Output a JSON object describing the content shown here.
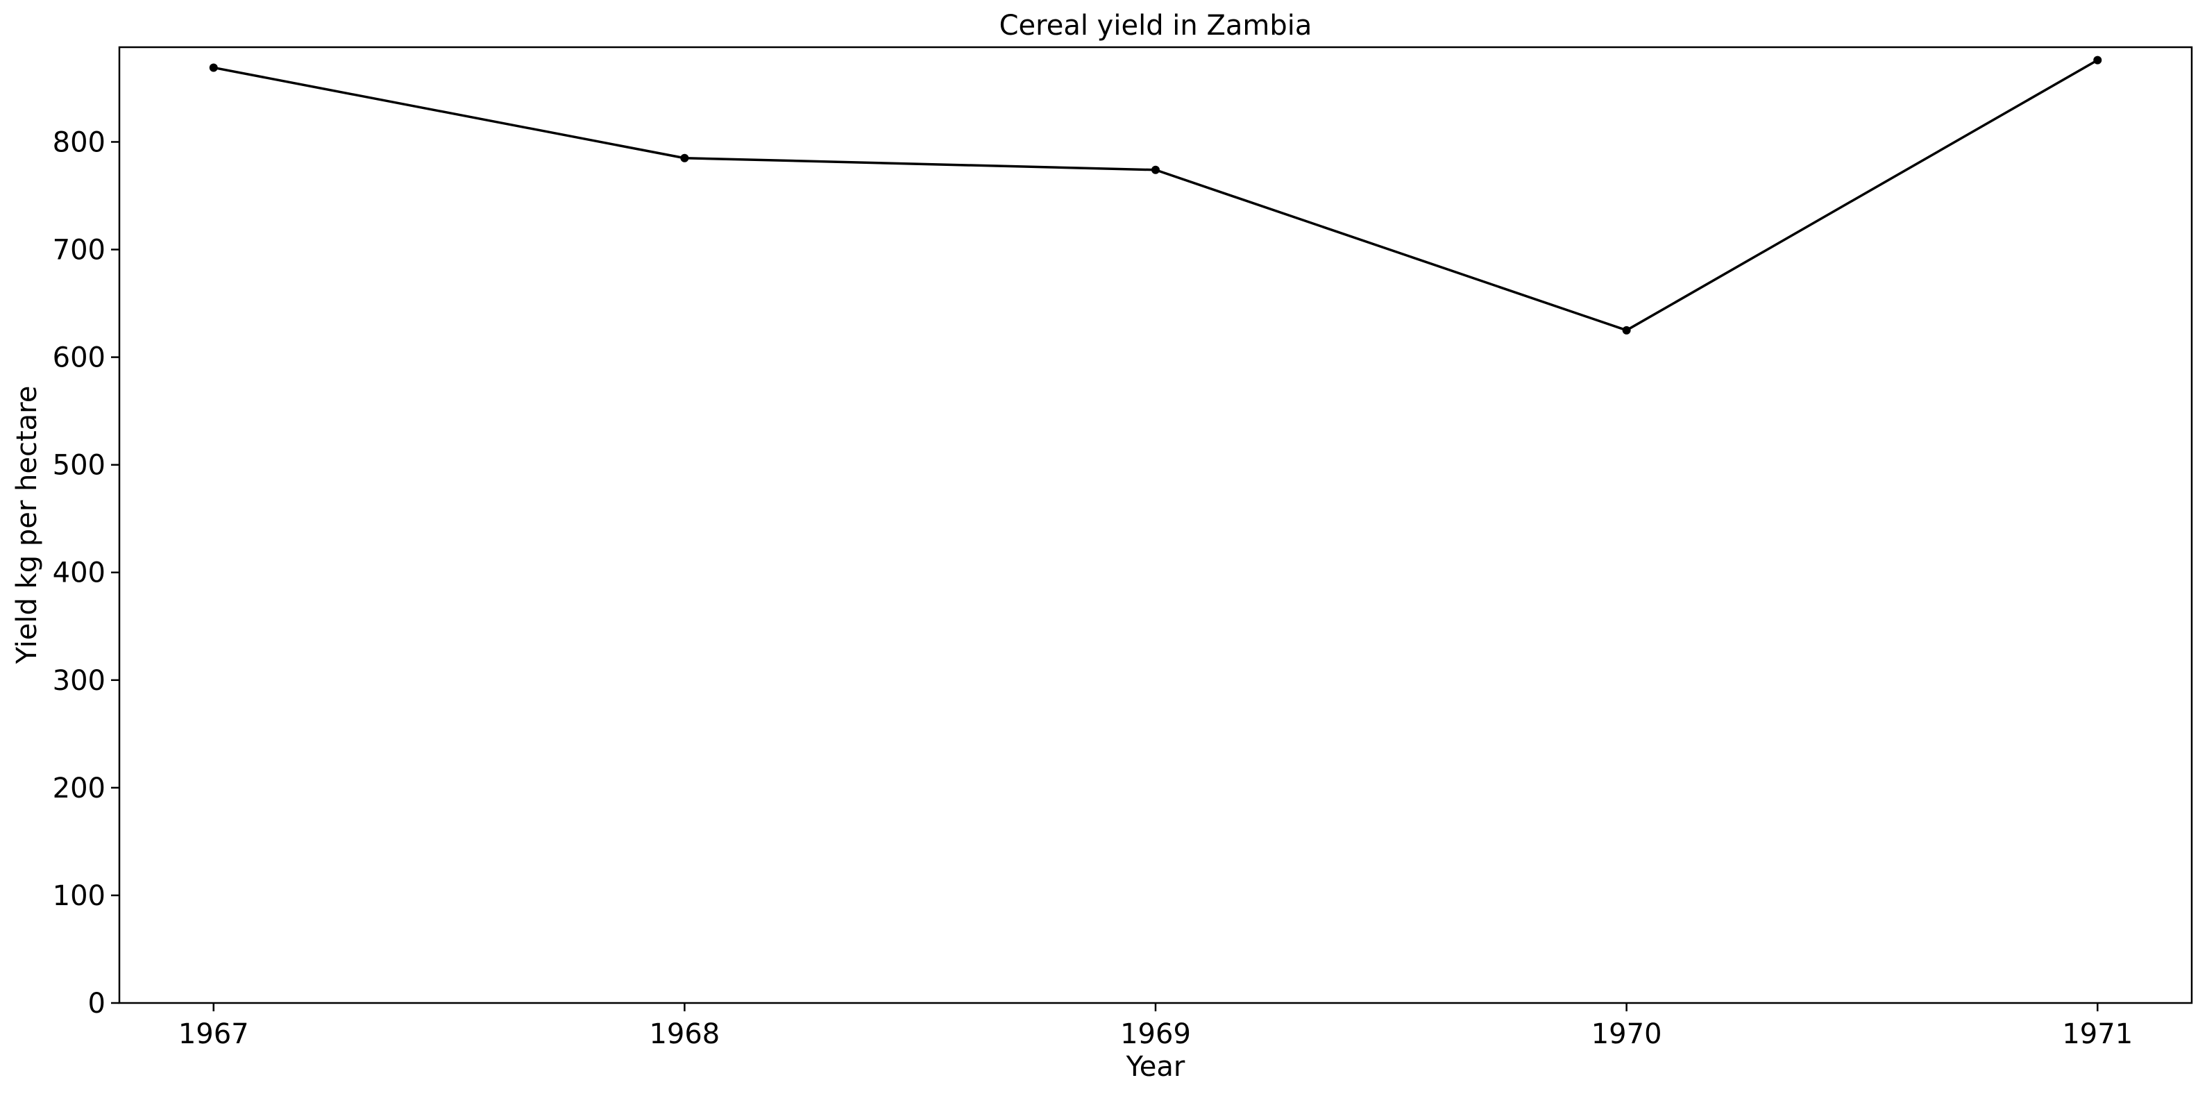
{
  "chart_data": {
    "type": "line",
    "title": "Cereal yield in Zambia",
    "xlabel": "Year",
    "ylabel": "Yield kg per hectare",
    "x": [
      1967,
      1968,
      1969,
      1970,
      1971
    ],
    "x_tick_labels": [
      "1967",
      "1968",
      "1969",
      "1970",
      "1971"
    ],
    "y_ticks": [
      0,
      100,
      200,
      300,
      400,
      500,
      600,
      700,
      800
    ],
    "y_tick_labels": [
      "0",
      "100",
      "200",
      "300",
      "400",
      "500",
      "600",
      "700",
      "800"
    ],
    "xlim": [
      1966.8,
      1971.2
    ],
    "ylim": [
      0,
      888
    ],
    "series": [
      {
        "values": [
          869,
          785,
          774,
          625,
          876
        ],
        "color": "#000000"
      }
    ],
    "grid": false,
    "legend": "none"
  }
}
